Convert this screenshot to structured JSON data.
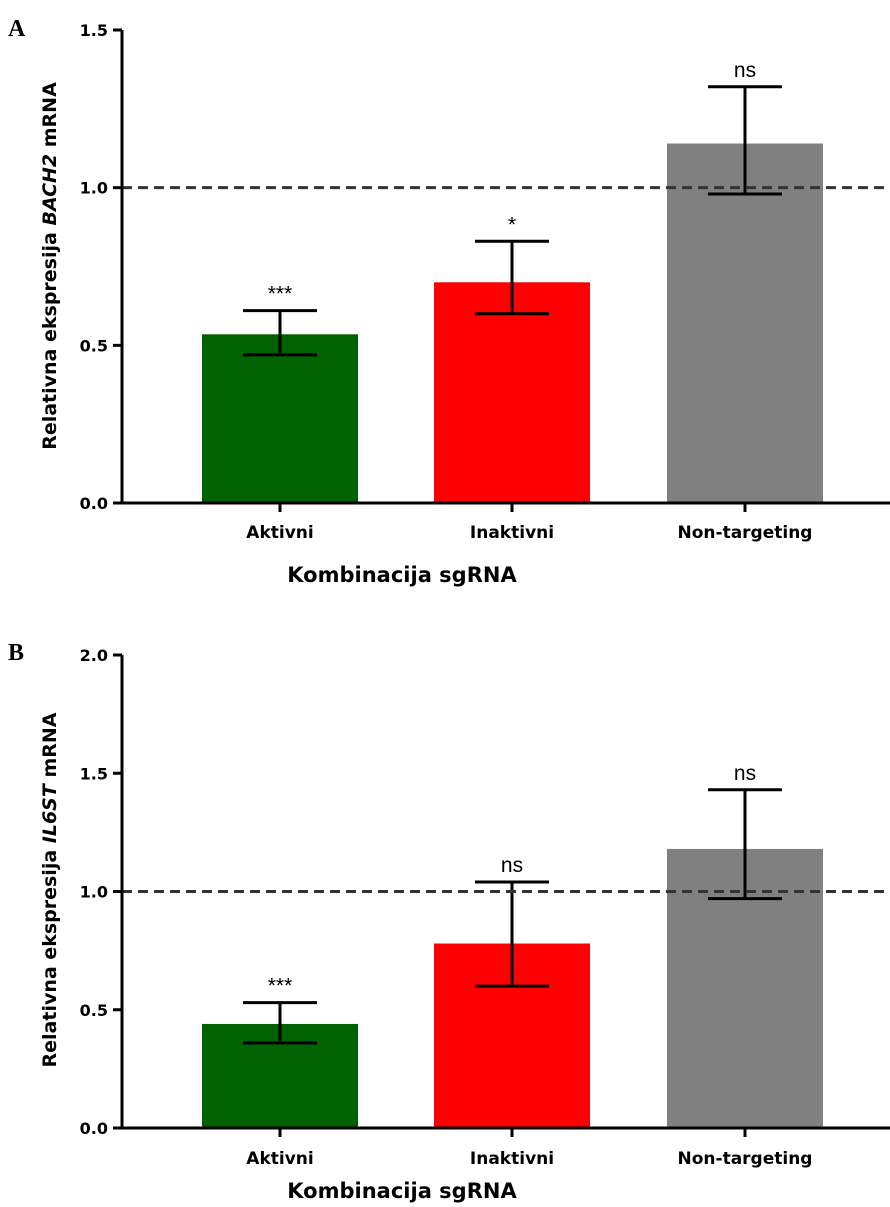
{
  "chart_data": [
    {
      "type": "bar",
      "panel_label": "A",
      "ylabel_prefix": "Relativna ekspresija ",
      "ylabel_gene": "BACH2",
      "ylabel_suffix": " mRNA",
      "xlabel": "Kombinacija sgRNA",
      "categories": [
        "Aktivni",
        "Inaktivni",
        "Non-targeting"
      ],
      "values": [
        0.535,
        0.7,
        1.14
      ],
      "error_low": [
        0.47,
        0.6,
        0.98
      ],
      "error_high": [
        0.61,
        0.83,
        1.32
      ],
      "significance": [
        "***",
        "*",
        "ns"
      ],
      "colors": [
        "#006100",
        "#ff0000",
        "#808080"
      ],
      "ylim": [
        0,
        1.5
      ],
      "yticks": [
        0.0,
        0.5,
        1.0,
        1.5
      ],
      "ytick_labels": [
        "0.0",
        "0.5",
        "1.0",
        "1.5"
      ],
      "reference_line": 1.0,
      "grid": false
    },
    {
      "type": "bar",
      "panel_label": "B",
      "ylabel_prefix": "Relativna ekspresija ",
      "ylabel_gene": "IL6ST",
      "ylabel_suffix": " mRNA",
      "xlabel": "Kombinacija sgRNA",
      "categories": [
        "Aktivni",
        "Inaktivni",
        "Non-targeting"
      ],
      "values": [
        0.44,
        0.78,
        1.18
      ],
      "error_low": [
        0.36,
        0.6,
        0.97
      ],
      "error_high": [
        0.53,
        1.04,
        1.43
      ],
      "significance": [
        "***",
        "ns",
        "ns"
      ],
      "colors": [
        "#006100",
        "#ff0000",
        "#808080"
      ],
      "ylim": [
        0,
        2.0
      ],
      "yticks": [
        0.0,
        0.5,
        1.0,
        1.5,
        2.0
      ],
      "ytick_labels": [
        "0.0",
        "0.5",
        "1.0",
        "1.5",
        "2.0"
      ],
      "reference_line": 1.0,
      "grid": false
    }
  ]
}
